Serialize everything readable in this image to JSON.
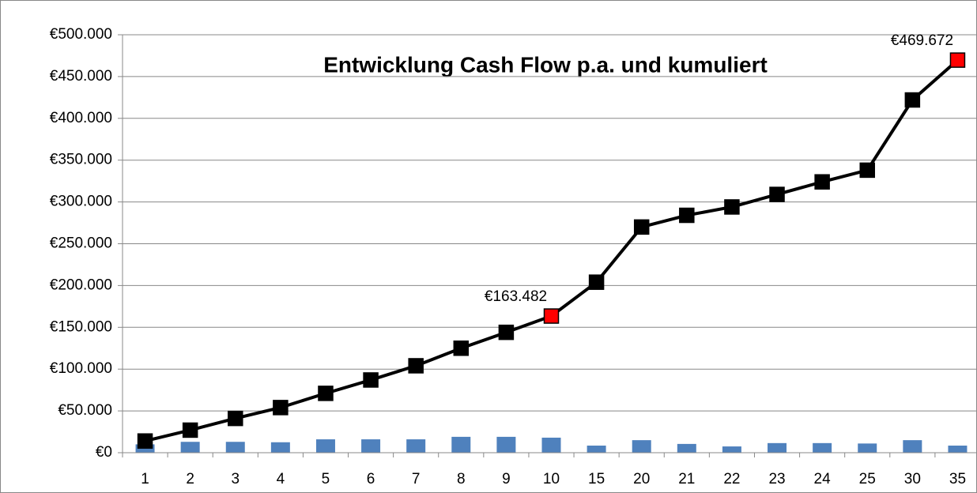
{
  "chart_data": {
    "type": "combo",
    "title": "Entwicklung Cash Flow p.a. und kumuliert",
    "categories": [
      "1",
      "2",
      "3",
      "4",
      "5",
      "6",
      "7",
      "8",
      "9",
      "10",
      "15",
      "20",
      "21",
      "22",
      "23",
      "24",
      "25",
      "30",
      "35"
    ],
    "series": [
      {
        "type": "bar",
        "color": "#4f81bd",
        "values": [
          10000,
          13000,
          13000,
          12500,
          16000,
          16000,
          16000,
          19000,
          19000,
          18000,
          8500,
          15000,
          10500,
          7500,
          11500,
          11500,
          11000,
          15000,
          8500
        ]
      },
      {
        "type": "line",
        "color": "#000000",
        "highlight_color": "#ff0000",
        "values": [
          14000,
          27000,
          41000,
          54000,
          71000,
          87000,
          104000,
          125000,
          144000,
          163482,
          204000,
          270000,
          284000,
          294000,
          309000,
          324000,
          338000,
          422000,
          469672
        ],
        "value_labels": [
          null,
          null,
          null,
          null,
          null,
          null,
          null,
          null,
          null,
          "€163.482",
          null,
          null,
          null,
          null,
          null,
          null,
          null,
          null,
          "€469.672"
        ]
      }
    ],
    "ylim": [
      0,
      500000
    ],
    "yticks": [
      {
        "value": 0,
        "label": "€0"
      },
      {
        "value": 50000,
        "label": "€50.000"
      },
      {
        "value": 100000,
        "label": "€100.000"
      },
      {
        "value": 150000,
        "label": "€150.000"
      },
      {
        "value": 200000,
        "label": "€200.000"
      },
      {
        "value": 250000,
        "label": "€250.000"
      },
      {
        "value": 300000,
        "label": "€300.000"
      },
      {
        "value": 350000,
        "label": "€350.000"
      },
      {
        "value": 400000,
        "label": "€400.000"
      },
      {
        "value": 450000,
        "label": "€450.000"
      },
      {
        "value": 500000,
        "label": "€500.000"
      }
    ],
    "grid": true
  }
}
